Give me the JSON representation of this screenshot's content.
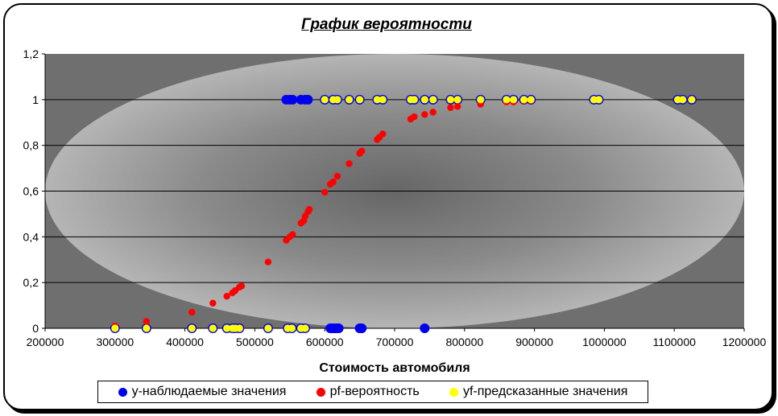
{
  "chart_data": {
    "type": "scatter",
    "title": "График вероятности",
    "xlabel": "Стоимость автомобиля",
    "ylabel": "",
    "xlim": [
      200000,
      1200000
    ],
    "ylim": [
      0,
      1.2
    ],
    "x_ticks": [
      "200000",
      "300000",
      "400000",
      "500000",
      "600000",
      "700000",
      "800000",
      "900000",
      "1000000",
      "1100000",
      "1200000"
    ],
    "y_ticks": [
      "0",
      "0,2",
      "0,4",
      "0,6",
      "0,8",
      "1",
      "1,2"
    ],
    "grid": "horizontal",
    "legend_position": "bottom",
    "series": [
      {
        "name": "y-наблюдаемые значения",
        "color": "#0000ee",
        "points": [
          [
            300000,
            0
          ],
          [
            345000,
            0
          ],
          [
            410000,
            0
          ],
          [
            440000,
            0
          ],
          [
            460000,
            0
          ],
          [
            468000,
            0
          ],
          [
            472000,
            0
          ],
          [
            478000,
            0
          ],
          [
            519000,
            0
          ],
          [
            547000,
            0
          ],
          [
            553000,
            0
          ],
          [
            566000,
            0
          ],
          [
            572000,
            0
          ],
          [
            608000,
            0
          ],
          [
            611000,
            0
          ],
          [
            614000,
            0
          ],
          [
            617000,
            0
          ],
          [
            620000,
            0
          ],
          [
            650000,
            0
          ],
          [
            653000,
            0
          ],
          [
            743000,
            0
          ],
          [
            545000,
            1
          ],
          [
            550000,
            1
          ],
          [
            554000,
            1
          ],
          [
            566000,
            1
          ],
          [
            572000,
            1
          ],
          [
            576000,
            1
          ],
          [
            600000,
            1
          ],
          [
            612000,
            1
          ],
          [
            618000,
            1
          ],
          [
            635000,
            1
          ],
          [
            650000,
            1
          ],
          [
            675000,
            1
          ],
          [
            683000,
            1
          ],
          [
            723000,
            1
          ],
          [
            728000,
            1
          ],
          [
            743000,
            1
          ],
          [
            755000,
            1
          ],
          [
            780000,
            1
          ],
          [
            790000,
            1
          ],
          [
            823000,
            1
          ],
          [
            860000,
            1
          ],
          [
            870000,
            1
          ],
          [
            885000,
            1
          ],
          [
            895000,
            1
          ],
          [
            985000,
            1
          ],
          [
            992000,
            1
          ],
          [
            1105000,
            1
          ],
          [
            1112000,
            1
          ],
          [
            1125000,
            1
          ]
        ]
      },
      {
        "name": "pf-вероятность",
        "color": "#ff0000",
        "points": [
          [
            300000,
            0.01
          ],
          [
            345000,
            0.03
          ],
          [
            410000,
            0.07
          ],
          [
            440000,
            0.11
          ],
          [
            460000,
            0.14
          ],
          [
            468000,
            0.155
          ],
          [
            472000,
            0.165
          ],
          [
            478000,
            0.18
          ],
          [
            481000,
            0.185
          ],
          [
            519000,
            0.29
          ],
          [
            545000,
            0.385
          ],
          [
            550000,
            0.4
          ],
          [
            554000,
            0.41
          ],
          [
            566000,
            0.46
          ],
          [
            570000,
            0.47
          ],
          [
            572000,
            0.49
          ],
          [
            576000,
            0.51
          ],
          [
            578000,
            0.52
          ],
          [
            600000,
            0.595
          ],
          [
            608000,
            0.63
          ],
          [
            612000,
            0.64
          ],
          [
            618000,
            0.665
          ],
          [
            635000,
            0.72
          ],
          [
            650000,
            0.765
          ],
          [
            653000,
            0.775
          ],
          [
            675000,
            0.825
          ],
          [
            678000,
            0.835
          ],
          [
            683000,
            0.85
          ],
          [
            723000,
            0.915
          ],
          [
            728000,
            0.925
          ],
          [
            743000,
            0.935
          ],
          [
            755000,
            0.945
          ],
          [
            780000,
            0.965
          ],
          [
            790000,
            0.97
          ],
          [
            823000,
            0.98
          ],
          [
            860000,
            0.99
          ],
          [
            870000,
            0.99
          ],
          [
            885000,
            0.995
          ],
          [
            895000,
            0.996
          ],
          [
            985000,
            0.999
          ],
          [
            992000,
            0.999
          ],
          [
            1105000,
            1.0
          ],
          [
            1112000,
            1.0
          ],
          [
            1125000,
            1.0
          ]
        ]
      },
      {
        "name": "yf-предсказанные значения",
        "color": "#ffff00",
        "points": [
          [
            300000,
            0
          ],
          [
            345000,
            0
          ],
          [
            410000,
            0
          ],
          [
            440000,
            0
          ],
          [
            460000,
            0
          ],
          [
            468000,
            0
          ],
          [
            472000,
            0
          ],
          [
            478000,
            0
          ],
          [
            519000,
            0
          ],
          [
            547000,
            0
          ],
          [
            553000,
            0
          ],
          [
            566000,
            0
          ],
          [
            572000,
            0
          ],
          [
            600000,
            1
          ],
          [
            612000,
            1
          ],
          [
            618000,
            1
          ],
          [
            635000,
            1
          ],
          [
            650000,
            1
          ],
          [
            675000,
            1
          ],
          [
            683000,
            1
          ],
          [
            723000,
            1
          ],
          [
            728000,
            1
          ],
          [
            743000,
            1
          ],
          [
            755000,
            1
          ],
          [
            780000,
            1
          ],
          [
            790000,
            1
          ],
          [
            823000,
            1
          ],
          [
            860000,
            1
          ],
          [
            870000,
            1
          ],
          [
            885000,
            1
          ],
          [
            895000,
            1
          ],
          [
            985000,
            1
          ],
          [
            992000,
            1
          ],
          [
            1105000,
            1
          ],
          [
            1112000,
            1
          ],
          [
            1125000,
            1
          ]
        ]
      }
    ]
  }
}
